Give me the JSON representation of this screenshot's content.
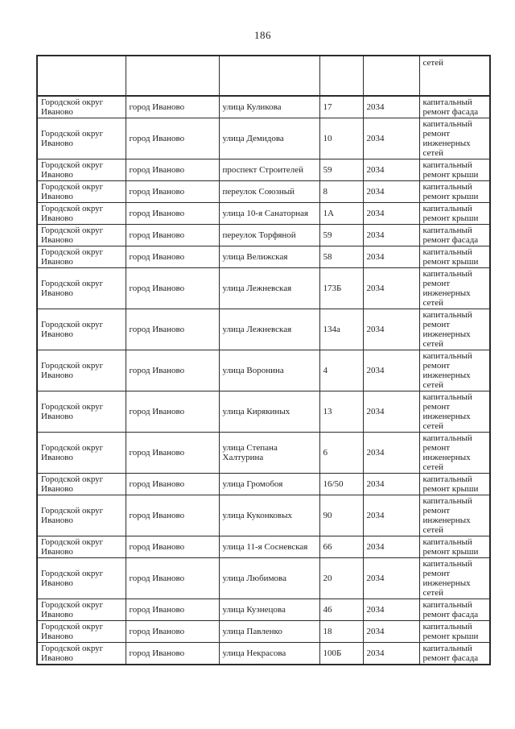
{
  "page": {
    "number": "186"
  },
  "colors": {
    "text": "#1f1f1f",
    "border": "#2b2b2b",
    "background": "#ffffff"
  },
  "table": {
    "continuation_row": {
      "municipality": "",
      "settlement": "",
      "street": "",
      "house": "",
      "year": "",
      "work": "сетей"
    },
    "rows": [
      {
        "municipality": "Городской округ Иваново",
        "settlement": "город Иваново",
        "street": "улица Куликова",
        "house": "17",
        "year": "2034",
        "work": "капитальный ремонт фасада"
      },
      {
        "municipality": "Городской округ Иваново",
        "settlement": "город Иваново",
        "street": "улица Демидова",
        "house": "10",
        "year": "2034",
        "work": "капитальный ремонт инженерных сетей"
      },
      {
        "municipality": "Городской округ Иваново",
        "settlement": "город Иваново",
        "street": "проспект Строителей",
        "house": "59",
        "year": "2034",
        "work": "капитальный ремонт крыши"
      },
      {
        "municipality": "Городской округ Иваново",
        "settlement": "город Иваново",
        "street": "переулок Союзный",
        "house": "8",
        "year": "2034",
        "work": "капитальный ремонт крыши"
      },
      {
        "municipality": "Городской округ Иваново",
        "settlement": "город Иваново",
        "street": "улица 10-я Санаторная",
        "house": "1А",
        "year": "2034",
        "work": "капитальный ремонт крыши"
      },
      {
        "municipality": "Городской округ Иваново",
        "settlement": "город Иваново",
        "street": "переулок Торфяной",
        "house": "59",
        "year": "2034",
        "work": "капитальный ремонт фасада"
      },
      {
        "municipality": "Городской округ Иваново",
        "settlement": "город Иваново",
        "street": "улица Велижская",
        "house": "58",
        "year": "2034",
        "work": "капитальный ремонт крыши"
      },
      {
        "municipality": "Городской округ Иваново",
        "settlement": "город Иваново",
        "street": "улица Лежневская",
        "house": "173Б",
        "year": "2034",
        "work": "капитальный ремонт инженерных сетей"
      },
      {
        "municipality": "Городской округ Иваново",
        "settlement": "город Иваново",
        "street": "улица Лежневская",
        "house": "134а",
        "year": "2034",
        "work": "капитальный ремонт инженерных сетей"
      },
      {
        "municipality": "Городской округ Иваново",
        "settlement": "город Иваново",
        "street": "улица Воронина",
        "house": "4",
        "year": "2034",
        "work": "капитальный ремонт инженерных сетей"
      },
      {
        "municipality": "Городской округ Иваново",
        "settlement": "город Иваново",
        "street": "улица Кирякиных",
        "house": "13",
        "year": "2034",
        "work": "капитальный ремонт инженерных сетей"
      },
      {
        "municipality": "Городской округ Иваново",
        "settlement": "город Иваново",
        "street": "улица Степана Халтурина",
        "house": "6",
        "year": "2034",
        "work": "капитальный ремонт инженерных сетей"
      },
      {
        "municipality": "Городской округ Иваново",
        "settlement": "город Иваново",
        "street": "улица Громобоя",
        "house": "16/50",
        "year": "2034",
        "work": "капитальный ремонт крыши"
      },
      {
        "municipality": "Городской округ Иваново",
        "settlement": "город Иваново",
        "street": "улица Куконковых",
        "house": "90",
        "year": "2034",
        "work": "капитальный ремонт инженерных сетей"
      },
      {
        "municipality": "Городской округ Иваново",
        "settlement": "город Иваново",
        "street": "улица 11-я Сосневская",
        "house": "66",
        "year": "2034",
        "work": "капитальный ремонт крыши"
      },
      {
        "municipality": "Городской округ Иваново",
        "settlement": "город Иваново",
        "street": "улица Любимова",
        "house": "20",
        "year": "2034",
        "work": "капитальный ремонт инженерных сетей"
      },
      {
        "municipality": "Городской округ Иваново",
        "settlement": "город Иваново",
        "street": "улица Кузнецова",
        "house": "46",
        "year": "2034",
        "work": "капитальный ремонт фасада"
      },
      {
        "municipality": "Городской округ Иваново",
        "settlement": "город Иваново",
        "street": "улица Павленко",
        "house": "18",
        "year": "2034",
        "work": "капитальный ремонт крыши"
      },
      {
        "municipality": "Городской округ Иваново",
        "settlement": "город Иваново",
        "street": "улица Некрасова",
        "house": "100Б",
        "year": "2034",
        "work": "капитальный ремонт фасада"
      }
    ]
  }
}
